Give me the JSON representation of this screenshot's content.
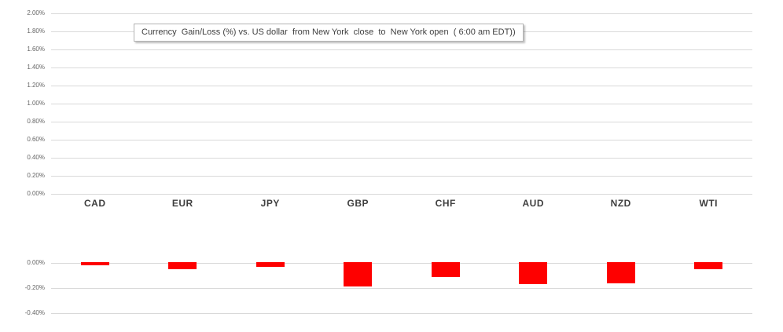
{
  "chart": {
    "title": "Currency  Gain/Loss (%) vs. US dollar  from New York  close  to  New York open  ( 6:00 am EDT))"
  },
  "colors": {
    "bar": "#fe0000",
    "gridline": "#d9d9d9",
    "axis_label_text": "#666666",
    "category_label_text": "#3f3f3f",
    "title_text": "#3f3f3f",
    "title_border": "#b3b3b3",
    "background": "#ffffff"
  },
  "chart_data": {
    "type": "bar",
    "title": "Currency  Gain/Loss (%) vs. US dollar  from New York  close  to  New York open  ( 6:00 am EDT))",
    "categories": [
      "CAD",
      "EUR",
      "JPY",
      "GBP",
      "CHF",
      "AUD",
      "NZD",
      "WTI"
    ],
    "values": [
      -0.02,
      -0.05,
      -0.03,
      -0.19,
      -0.11,
      -0.17,
      -0.16,
      -0.05
    ],
    "value_unit": "%",
    "xlabel": "",
    "ylabel": "",
    "ylim": [
      -0.4,
      2.0
    ],
    "grid": true,
    "legend": false,
    "bar_color": "#fe0000",
    "upper_axis_ticks": [
      "2.00%",
      "1.80%",
      "1.60%",
      "1.40%",
      "1.20%",
      "1.00%",
      "0.80%",
      "0.60%",
      "0.40%",
      "0.20%",
      "0.00%"
    ],
    "lower_axis_ticks": [
      "0.00%",
      "-0.20%",
      "-0.40%"
    ],
    "axis_tick_step_pct": 0.2
  }
}
